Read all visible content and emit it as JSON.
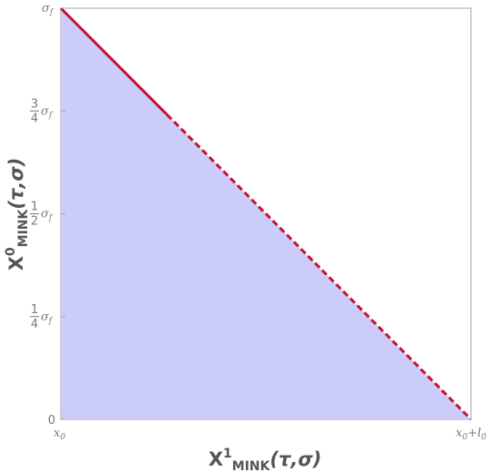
{
  "chart_data": {
    "type": "area",
    "xlabel": {
      "main": "X",
      "sup": "1",
      "sub": "MINK",
      "args": "(τ,σ)"
    },
    "ylabel": {
      "main": "X",
      "sup": "0",
      "sub": "MINK",
      "args": "(τ,σ)"
    },
    "x_ticks": [
      {
        "value": 0,
        "label": "x",
        "sub": "0",
        "tail": ""
      },
      {
        "value": 1,
        "label": "x",
        "sub": "0",
        "tail": "+",
        "tail_label": "l",
        "tail_sub": "0"
      }
    ],
    "y_ticks": [
      {
        "value": 0,
        "label": "0"
      },
      {
        "value": 0.25,
        "num": "1",
        "den": "4",
        "sym": "σ",
        "sub": "f"
      },
      {
        "value": 0.5,
        "num": "1",
        "den": "2",
        "sym": "σ",
        "sub": "f"
      },
      {
        "value": 0.75,
        "num": "3",
        "den": "4",
        "sym": "σ",
        "sub": "f"
      },
      {
        "value": 1,
        "sym": "σ",
        "sub": "f"
      }
    ],
    "xlim": [
      0,
      1
    ],
    "ylim": [
      0,
      1
    ],
    "fill": {
      "points": [
        [
          0,
          0
        ],
        [
          0,
          1
        ],
        [
          1,
          0
        ]
      ],
      "color": "#ccccfb"
    },
    "series": [
      {
        "style": "solid",
        "x": [
          0,
          0.259
        ],
        "y": [
          1,
          0.741
        ],
        "color": "#c8102e"
      },
      {
        "style": "dashed",
        "x": [
          0.259,
          1
        ],
        "y": [
          0.741,
          0
        ],
        "color": "#c8102e"
      }
    ],
    "frame_color": "#a6a6a6"
  }
}
